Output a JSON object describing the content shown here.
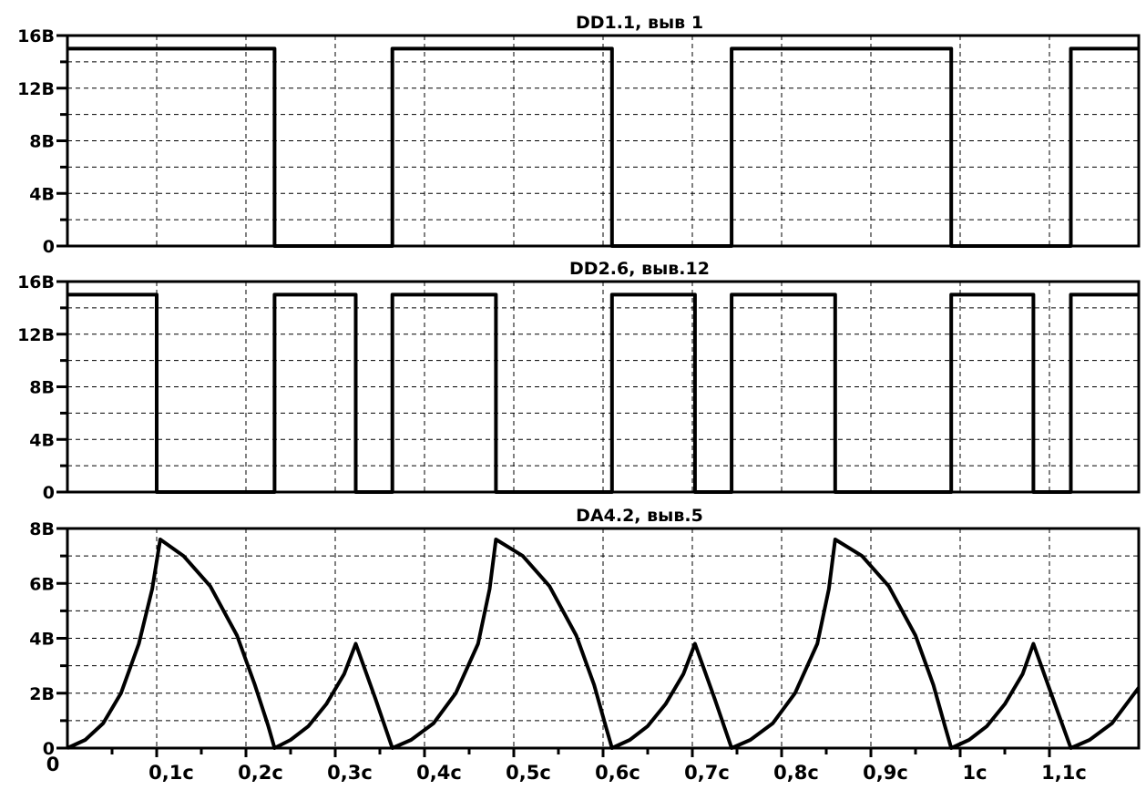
{
  "chart_data": [
    {
      "type": "line",
      "title": "DD1.1, выв 1",
      "y_tick_labels": [
        "16В",
        "12В",
        "8В",
        "4В",
        "0"
      ],
      "y_ticks": [
        16,
        12,
        8,
        4,
        0
      ],
      "ylim": [
        0,
        16
      ],
      "xlim": [
        0,
        1.2
      ],
      "grid": true,
      "series": [
        {
          "x": [
            0,
            0.232,
            0.232,
            0.364,
            0.364,
            0.61,
            0.61,
            0.744,
            0.744,
            0.99,
            0.99,
            1.124,
            1.124,
            1.2
          ],
          "y": [
            15,
            15,
            0,
            0,
            15,
            15,
            0,
            0,
            15,
            15,
            0,
            0,
            15,
            15
          ]
        }
      ]
    },
    {
      "type": "line",
      "title": "DD2.6, выв.12",
      "y_tick_labels": [
        "16В",
        "12В",
        "8В",
        "4В",
        "0"
      ],
      "y_ticks": [
        16,
        12,
        8,
        4,
        0
      ],
      "ylim": [
        0,
        16
      ],
      "xlim": [
        0,
        1.2
      ],
      "grid": true,
      "series": [
        {
          "x": [
            0,
            0.1,
            0.1,
            0.232,
            0.232,
            0.323,
            0.323,
            0.364,
            0.364,
            0.48,
            0.48,
            0.61,
            0.61,
            0.703,
            0.703,
            0.744,
            0.744,
            0.86,
            0.86,
            0.99,
            0.99,
            1.082,
            1.082,
            1.124,
            1.124,
            1.2
          ],
          "y": [
            15,
            15,
            0,
            0,
            15,
            15,
            0,
            0,
            15,
            15,
            0,
            0,
            15,
            15,
            0,
            0,
            15,
            15,
            0,
            0,
            15,
            15,
            0,
            0,
            15,
            15
          ]
        }
      ]
    },
    {
      "type": "line",
      "title": "DA4.2, выв.5",
      "y_tick_labels": [
        "8В",
        "6В",
        "4В",
        "2В",
        "0"
      ],
      "y_ticks": [
        8,
        6,
        4,
        2,
        0
      ],
      "ylim": [
        0,
        8
      ],
      "xlim": [
        0,
        1.2
      ],
      "grid": true,
      "x_tick_labels": [
        "0",
        "0,1с",
        "0,2с",
        "0,3с",
        "0,4с",
        "0,5с",
        "0,6с",
        "0,7с",
        "0,8с",
        "0,9с",
        "1с",
        "1,1с"
      ],
      "x_ticks": [
        0,
        0.1,
        0.2,
        0.3,
        0.4,
        0.5,
        0.6,
        0.7,
        0.8,
        0.9,
        1.0,
        1.1
      ],
      "series": [
        {
          "x": [
            0,
            0.02,
            0.04,
            0.06,
            0.08,
            0.095,
            0.104,
            0.13,
            0.16,
            0.19,
            0.21,
            0.225,
            0.232,
            0.25,
            0.27,
            0.29,
            0.31,
            0.323,
            0.345,
            0.364,
            0.385,
            0.41,
            0.435,
            0.46,
            0.473,
            0.48,
            0.51,
            0.54,
            0.57,
            0.59,
            0.603,
            0.61,
            0.63,
            0.65,
            0.67,
            0.69,
            0.703,
            0.725,
            0.744,
            0.765,
            0.79,
            0.815,
            0.84,
            0.853,
            0.86,
            0.89,
            0.92,
            0.95,
            0.97,
            0.983,
            0.99,
            1.01,
            1.03,
            1.05,
            1.07,
            1.082,
            1.104,
            1.124,
            1.145,
            1.17,
            1.2
          ],
          "y": [
            0,
            0.3,
            0.9,
            2.0,
            3.8,
            5.8,
            7.6,
            7.0,
            5.9,
            4.1,
            2.3,
            0.8,
            0,
            0.3,
            0.8,
            1.6,
            2.7,
            3.8,
            1.8,
            0,
            0.3,
            0.9,
            2.0,
            3.8,
            5.8,
            7.6,
            7.0,
            5.9,
            4.1,
            2.3,
            0.8,
            0,
            0.3,
            0.8,
            1.6,
            2.7,
            3.8,
            1.8,
            0,
            0.3,
            0.9,
            2.0,
            3.8,
            5.8,
            7.6,
            7.0,
            5.9,
            4.1,
            2.3,
            0.8,
            0,
            0.3,
            0.8,
            1.6,
            2.7,
            3.8,
            1.8,
            0,
            0.3,
            0.9,
            2.2
          ]
        }
      ]
    }
  ]
}
